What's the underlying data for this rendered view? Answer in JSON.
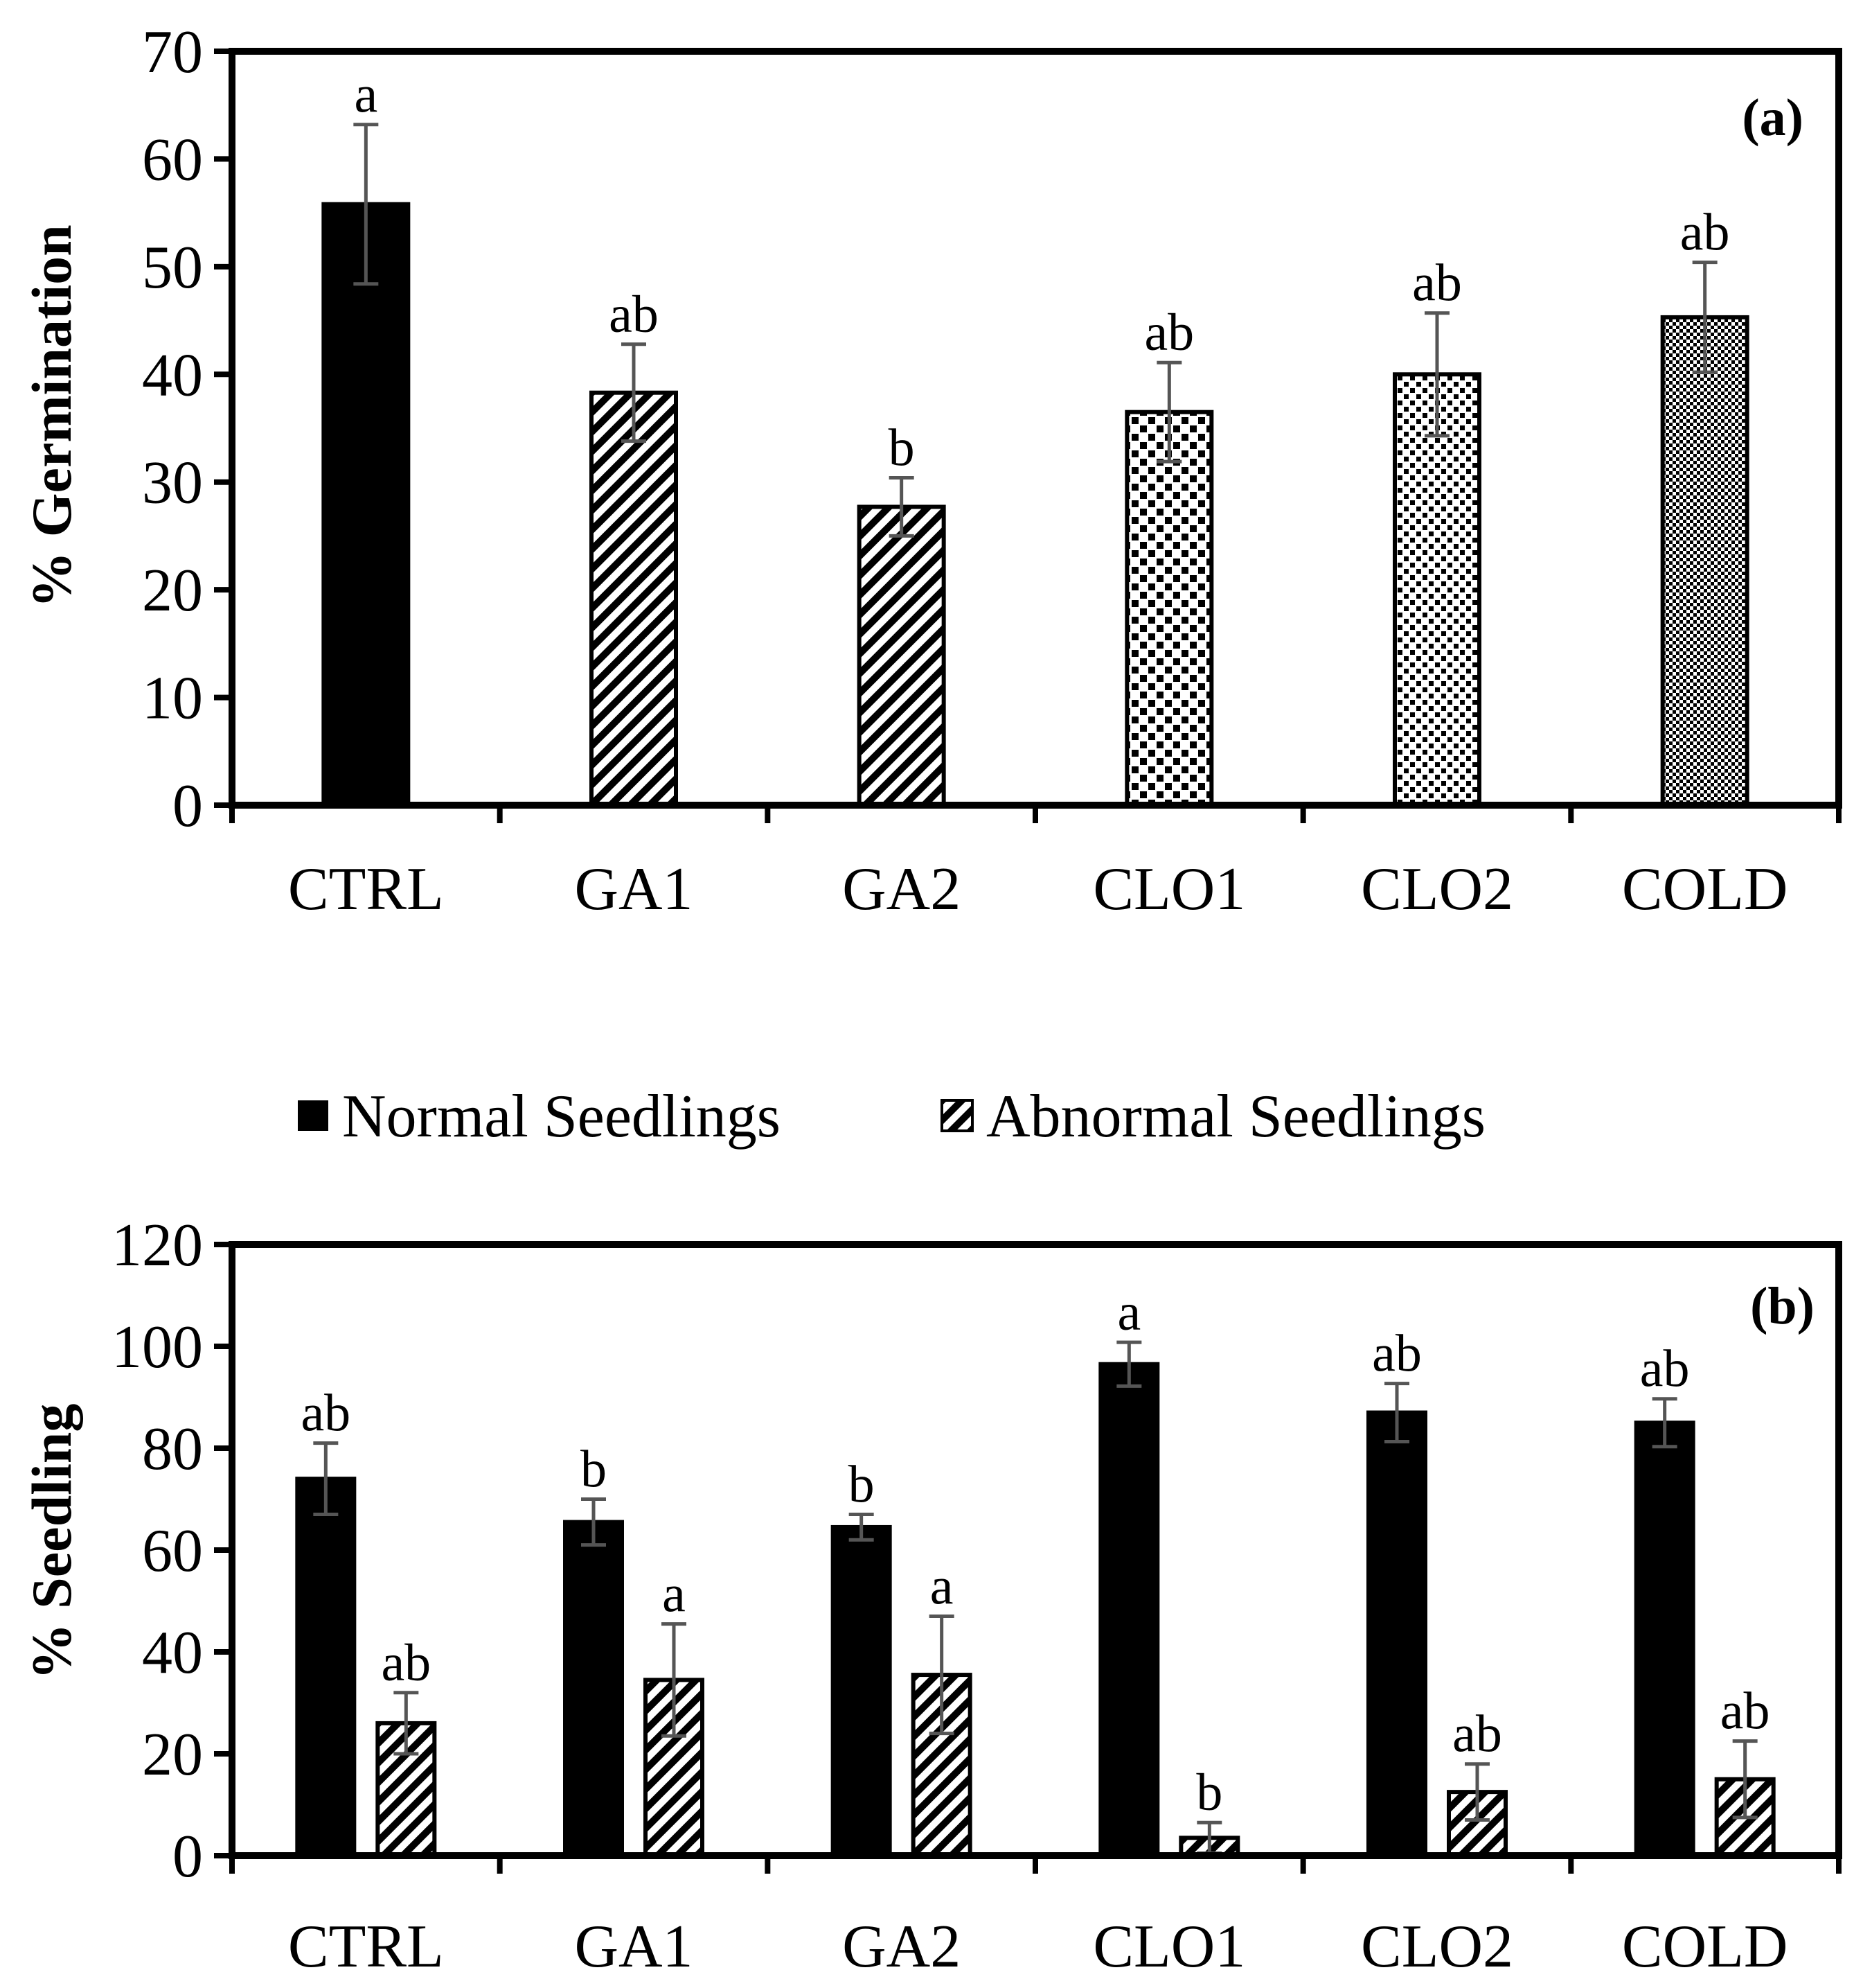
{
  "chart_data": [
    {
      "type": "bar",
      "panel_label": "(a)",
      "ylabel": "% Germination",
      "xlabel": "",
      "ylim": [
        0,
        70
      ],
      "yticks": [
        0,
        10,
        20,
        30,
        40,
        50,
        60,
        70
      ],
      "grid": false,
      "categories": [
        "CTRL",
        "GA1",
        "GA2",
        "CLO1",
        "CLO2",
        "COLD"
      ],
      "series": [
        {
          "name": "% Germination",
          "values": [
            55.8,
            38.3,
            27.7,
            36.5,
            40.0,
            45.3
          ],
          "errors": [
            7.4,
            4.5,
            2.7,
            4.6,
            5.7,
            5.1
          ],
          "significance": [
            "a",
            "ab",
            "b",
            "ab",
            "ab",
            "ab"
          ],
          "patterns": [
            "solid",
            "diag",
            "diag",
            "checker-large",
            "checker-small",
            "checker-fine"
          ]
        }
      ]
    },
    {
      "type": "bar",
      "panel_label": "(b)",
      "ylabel": "% Seedling",
      "xlabel": "",
      "ylim": [
        0,
        120
      ],
      "yticks": [
        0,
        20,
        40,
        60,
        80,
        100,
        120
      ],
      "grid": false,
      "legend_position": "top",
      "categories": [
        "CTRL",
        "GA1",
        "GA2",
        "CLO1",
        "CLO2",
        "COLD"
      ],
      "series": [
        {
          "name": "Normal Seedlings",
          "pattern": "solid",
          "values": [
            74.0,
            65.5,
            64.5,
            96.5,
            87.0,
            85.0
          ],
          "errors": [
            7.0,
            4.5,
            2.5,
            4.3,
            5.7,
            4.7
          ],
          "significance": [
            "ab",
            "b",
            "b",
            "a",
            "ab",
            "ab"
          ]
        },
        {
          "name": "Abnormal Seedlings",
          "pattern": "diag",
          "values": [
            26.0,
            34.5,
            35.5,
            3.5,
            12.5,
            15.0
          ],
          "errors": [
            6.0,
            11.0,
            11.5,
            3.0,
            5.5,
            7.5
          ],
          "significance": [
            "ab",
            "a",
            "a",
            "b",
            "ab",
            "ab"
          ]
        }
      ]
    }
  ]
}
